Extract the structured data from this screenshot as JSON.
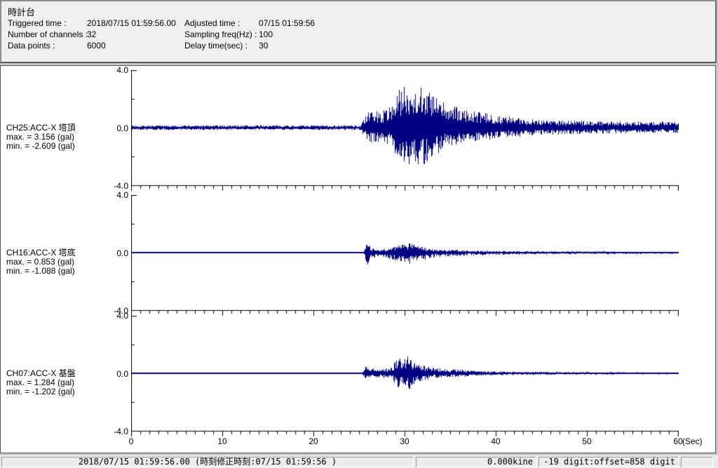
{
  "header": {
    "title": "時計台",
    "fields": [
      {
        "label": "Triggered time :",
        "value": "2018/07/15 01:59:56.00"
      },
      {
        "label": "Adjusted time :",
        "value": "07/15 01:59:56"
      },
      {
        "label": "Number of channels :",
        "value": "32"
      },
      {
        "label": "Sampling freq(Hz) :",
        "value": "100"
      },
      {
        "label": "Data points :",
        "value": "6000"
      },
      {
        "label": "Delay time(sec) :",
        "value": "30"
      }
    ]
  },
  "chart_data": {
    "type": "line",
    "title": "",
    "xlabel_unit": "(Sec)",
    "x_range": [
      0,
      60
    ],
    "x_tick_minor_step_sec": 1,
    "x_tick_major_step_sec": 10,
    "x_labels": [
      "0",
      "10",
      "20",
      "30",
      "40",
      "50",
      "60"
    ],
    "ylim": [
      -4.0,
      4.0
    ],
    "y_tick_labels": [
      "4.0",
      "0.0",
      "-4.0"
    ],
    "y_unit": "gal",
    "grid": false,
    "waveform_color": "#000080",
    "channels": [
      {
        "label": "CH25:ACC-X 塔頂",
        "max_label": "max. = 3.156 (gal)",
        "min_label": "min. = -2.609 (gal)",
        "max_gal": 3.156,
        "min_gal": -2.609,
        "onset_sec": 25.3,
        "peak_sec": 31.5,
        "up_scale": 1.0,
        "dn_scale": 0.85,
        "seed": 7,
        "envelope_t_amp_gal": [
          [
            0,
            0.17
          ],
          [
            25.2,
            0.17
          ],
          [
            25.6,
            0.9
          ],
          [
            26.5,
            1.3
          ],
          [
            27.5,
            1.1
          ],
          [
            28.5,
            1.8
          ],
          [
            29.3,
            2.6
          ],
          [
            30.2,
            3.1
          ],
          [
            31.2,
            2.9
          ],
          [
            32.0,
            3.156
          ],
          [
            32.8,
            2.5
          ],
          [
            34,
            1.9
          ],
          [
            35.5,
            1.5
          ],
          [
            37,
            1.2
          ],
          [
            38.5,
            1.05
          ],
          [
            40,
            0.9
          ],
          [
            42,
            0.75
          ],
          [
            44,
            0.65
          ],
          [
            47,
            0.55
          ],
          [
            50,
            0.5
          ],
          [
            54,
            0.45
          ],
          [
            60,
            0.42
          ]
        ]
      },
      {
        "label": "CH16:ACC-X 塔底",
        "max_label": "max. = 0.853 (gal)",
        "min_label": "min. = -1.088 (gal)",
        "max_gal": 0.853,
        "min_gal": -1.088,
        "onset_sec": 25.7,
        "peak_sec": 30.0,
        "up_scale": 0.82,
        "dn_scale": 1.0,
        "seed": 13,
        "envelope_t_amp_gal": [
          [
            0,
            0.045
          ],
          [
            25.5,
            0.045
          ],
          [
            25.9,
            1.05
          ],
          [
            26.3,
            0.4
          ],
          [
            27,
            0.3
          ],
          [
            28,
            0.35
          ],
          [
            28.8,
            0.55
          ],
          [
            29.5,
            0.75
          ],
          [
            30.3,
            0.85
          ],
          [
            31,
            0.7
          ],
          [
            31.8,
            0.55
          ],
          [
            32.5,
            0.4
          ],
          [
            33.5,
            0.3
          ],
          [
            35,
            0.25
          ],
          [
            37,
            0.2
          ],
          [
            39,
            0.16
          ],
          [
            42,
            0.13
          ],
          [
            46,
            0.11
          ],
          [
            50,
            0.1
          ],
          [
            55,
            0.09
          ],
          [
            60,
            0.08
          ]
        ]
      },
      {
        "label": "CH07:ACC-X 基盤",
        "max_label": "max. = 1.284 (gal)",
        "min_label": "min. = -1.202 (gal)",
        "max_gal": 1.284,
        "min_gal": -1.202,
        "onset_sec": 25.5,
        "peak_sec": 30.2,
        "up_scale": 1.0,
        "dn_scale": 0.95,
        "seed": 21,
        "envelope_t_amp_gal": [
          [
            0,
            0.04
          ],
          [
            25.3,
            0.04
          ],
          [
            25.7,
            0.45
          ],
          [
            26.5,
            0.35
          ],
          [
            27.5,
            0.3
          ],
          [
            28.5,
            0.4
          ],
          [
            29.3,
            1.1
          ],
          [
            29.8,
            0.9
          ],
          [
            30.5,
            1.25
          ],
          [
            31.2,
            0.7
          ],
          [
            32,
            0.55
          ],
          [
            33,
            0.4
          ],
          [
            34.5,
            0.3
          ],
          [
            36,
            0.25
          ],
          [
            38,
            0.18
          ],
          [
            40,
            0.14
          ],
          [
            43,
            0.11
          ],
          [
            47,
            0.09
          ],
          [
            52,
            0.08
          ],
          [
            60,
            0.07
          ]
        ]
      }
    ]
  },
  "statusbar": {
    "sections": [
      {
        "text": "2018/07/15 01:59:56.00  (時刻修正時刻:07/15 01:59:56  )"
      },
      {
        "text": "0.000kine"
      },
      {
        "text": "-19 digit:offset=858 digit"
      },
      {
        "text": ""
      }
    ]
  }
}
